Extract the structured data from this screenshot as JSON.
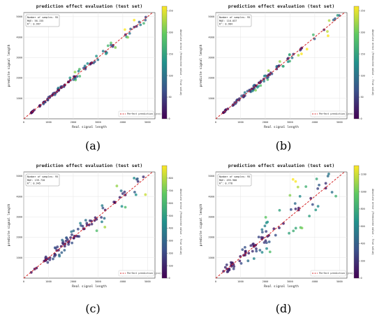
{
  "panels": [
    {
      "caption_label": "(a)",
      "chart_data": {
        "type": "scatter",
        "title": "prediction effect evaluation (test set)",
        "xlabel": "Real signal length",
        "ylabel": "predicte signal length",
        "colorbar_label": "Absolute error (Predicted value - True value)",
        "xlim": [
          0,
          5300
        ],
        "ylim": [
          0,
          5200
        ],
        "xticks": [
          0,
          1000,
          2000,
          3000,
          4000,
          5000
        ],
        "yticks": [
          1000,
          2000,
          3000,
          4000,
          5000
        ],
        "xtick_labels": [
          "0",
          "1000",
          "2000",
          "3000",
          "4000",
          "5000"
        ],
        "ytick_labels": [
          "1000",
          "2000",
          "3000",
          "4000",
          "5000"
        ],
        "clim": [
          0,
          260
        ],
        "cticks": [
          0,
          50,
          100,
          150,
          200,
          250
        ],
        "ctick_labels": [
          "0",
          "50",
          "100",
          "150",
          "200",
          "250"
        ],
        "stats": [
          "Number of samples: 95",
          "MAE: 56.155",
          "R²: 0.997"
        ],
        "legend": "Perfect prediction (y=x)",
        "legend_position": "lower right",
        "grid": true,
        "error_scale": 0.04,
        "error_cap": 260,
        "seed": 11
      }
    },
    {
      "caption_label": "(b)",
      "chart_data": {
        "type": "scatter",
        "title": "prediction effect evaluation (test set)",
        "xlabel": "Real signal length",
        "ylabel": "predicte signal length",
        "colorbar_label": "Absolute error (Predicted value - True value)",
        "xlim": [
          0,
          5300
        ],
        "ylim": [
          0,
          5200
        ],
        "xticks": [
          0,
          1000,
          2000,
          3000,
          4000,
          5000
        ],
        "yticks": [
          1000,
          2000,
          3000,
          4000,
          5000
        ],
        "xtick_labels": [
          "0",
          "1000",
          "2000",
          "3000",
          "4000",
          "5000"
        ],
        "ytick_labels": [
          "1000",
          "2000",
          "3000",
          "4000",
          "5000"
        ],
        "clim": [
          0,
          260
        ],
        "cticks": [
          0,
          50,
          100,
          150,
          200,
          250
        ],
        "ctick_labels": [
          "0",
          "50",
          "100",
          "150",
          "200",
          "250"
        ],
        "stats": [
          "Number of samples: 95",
          "MAE: 116.037",
          "R²: 0.984"
        ],
        "legend": "Perfect prediction (y=x)",
        "legend_position": "lower right",
        "grid": true,
        "error_scale": 0.05,
        "error_cap": 260,
        "seed": 23
      }
    },
    {
      "caption_label": "(c)",
      "chart_data": {
        "type": "scatter",
        "title": "prediction effect evaluation (test set)",
        "xlabel": "Real signal length",
        "ylabel": "predicte signal length",
        "colorbar_label": "Absolute error (Predicted value - True value)",
        "xlim": [
          0,
          5300
        ],
        "ylim": [
          0,
          5200
        ],
        "xticks": [
          0,
          1000,
          2000,
          3000,
          4000,
          5000
        ],
        "yticks": [
          1000,
          2000,
          3000,
          4000,
          5000
        ],
        "xtick_labels": [
          "0",
          "1000",
          "2000",
          "3000",
          "4000",
          "5000"
        ],
        "ytick_labels": [
          "1000",
          "2000",
          "3000",
          "4000",
          "5000"
        ],
        "clim": [
          0,
          900
        ],
        "cticks": [
          0,
          100,
          200,
          300,
          400,
          500,
          600,
          700,
          800
        ],
        "ctick_labels": [
          "0",
          "100",
          "200",
          "300",
          "400",
          "500",
          "600",
          "700",
          "800"
        ],
        "stats": [
          "Number of samples: 95",
          "MAE: 139.720",
          "R²: 0.945"
        ],
        "legend": "Perfect prediction (y=x)",
        "legend_position": "lower right",
        "grid": true,
        "error_scale": 0.1,
        "error_cap": 900,
        "seed": 37
      }
    },
    {
      "caption_label": "(d)",
      "chart_data": {
        "type": "scatter",
        "title": "prediction effect evaluation (test set)",
        "xlabel": "Real signal length",
        "ylabel": "predicte signal length",
        "colorbar_label": "Absolute error (Predicted value - True value)",
        "xlim": [
          0,
          5300
        ],
        "ylim": [
          0,
          5200
        ],
        "xticks": [
          0,
          1000,
          2000,
          3000,
          4000,
          5000
        ],
        "yticks": [
          1000,
          2000,
          3000,
          4000,
          5000
        ],
        "xtick_labels": [
          "0",
          "1000",
          "2000",
          "3000",
          "4000",
          "5000"
        ],
        "ytick_labels": [
          "1000",
          "2000",
          "3000",
          "4000",
          "5000"
        ],
        "clim": [
          0,
          1300
        ],
        "cticks": [
          0,
          200,
          400,
          600,
          800,
          1000,
          1200
        ],
        "ctick_labels": [
          "0",
          "200",
          "400",
          "600",
          "800",
          "1000",
          "1200"
        ],
        "stats": [
          "Number of samples: 95",
          "MAE: 493.980",
          "R²: 0.778"
        ],
        "legend": "Perfect prediction (y=x)",
        "legend_position": "lower right",
        "grid": true,
        "error_scale": 0.22,
        "error_cap": 1300,
        "seed": 53
      }
    }
  ],
  "colormap": [
    "#440154",
    "#3b528b",
    "#21918c",
    "#5ec962",
    "#fde725"
  ]
}
